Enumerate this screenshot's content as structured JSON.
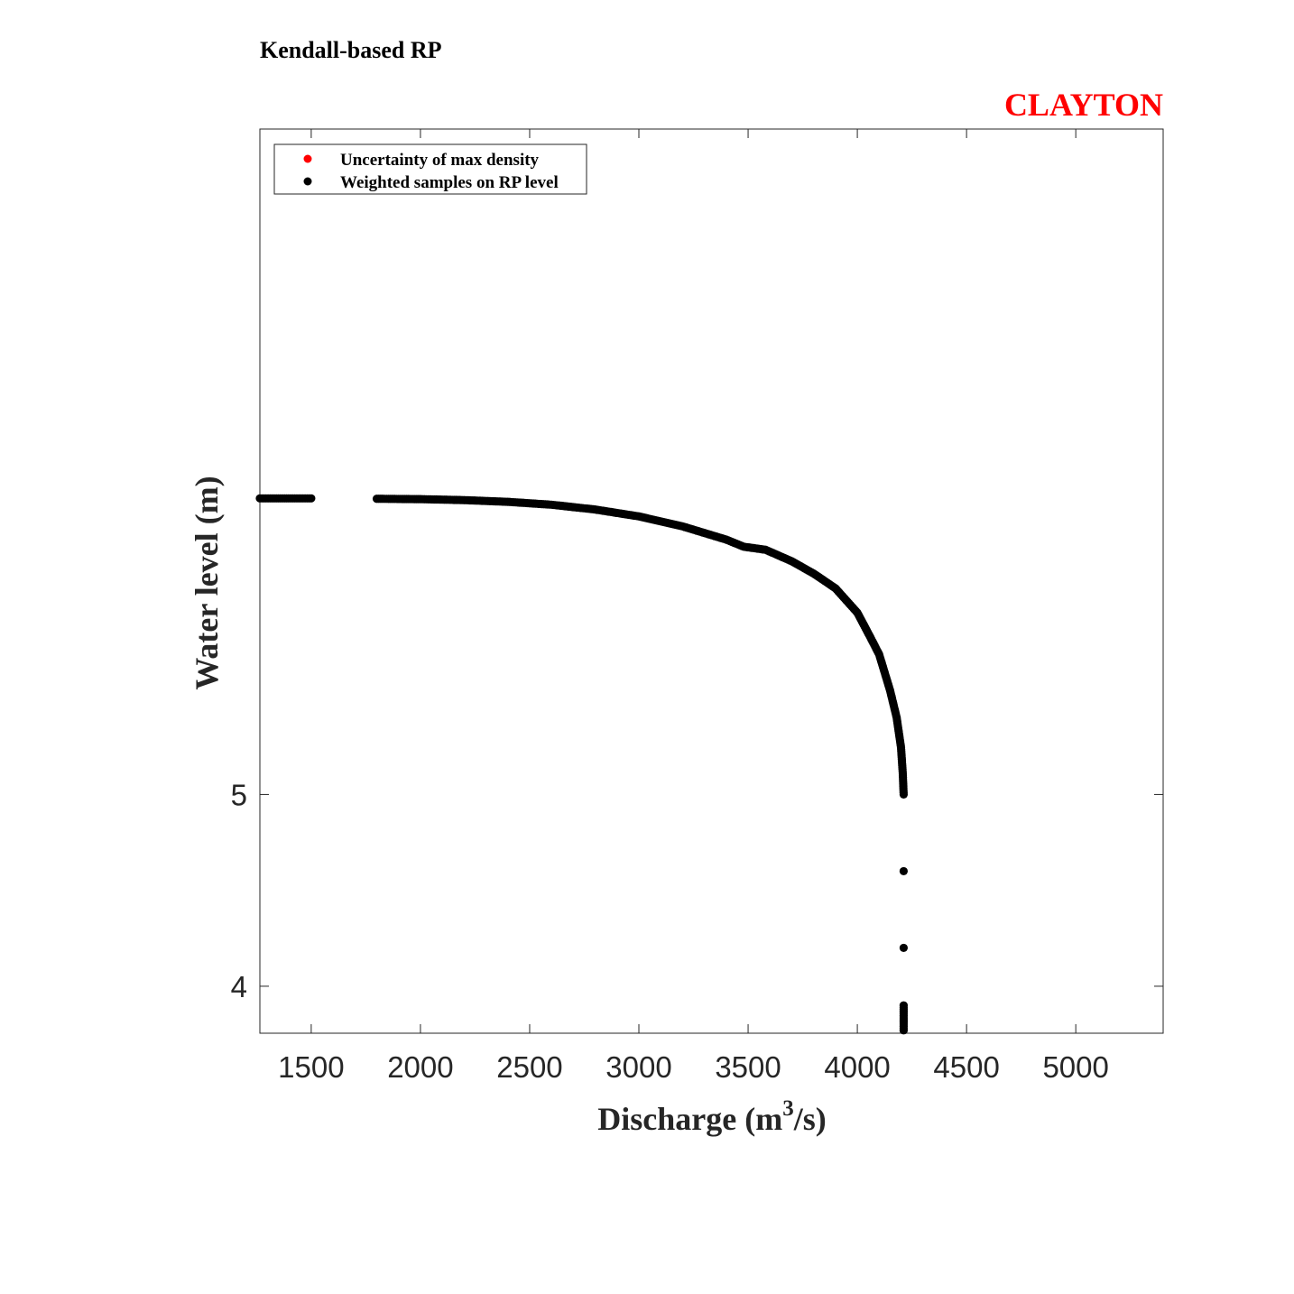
{
  "chart_data": {
    "type": "scatter",
    "title": "Kendall-based RP",
    "model_label": "CLAYTON",
    "xlabel_main": "Discharge (m",
    "xlabel_sup": "3",
    "xlabel_end": "/s)",
    "ylabel": "Water level (m)",
    "xlim": [
      1265,
      5400
    ],
    "ylim": [
      3.755,
      8.47
    ],
    "x_ticks": [
      1500,
      2000,
      2500,
      3000,
      3500,
      4000,
      4500,
      5000
    ],
    "x_tick_labels": [
      "1500",
      "2000",
      "2500",
      "3000",
      "3500",
      "4000",
      "4500",
      "5000"
    ],
    "y_ticks": [
      4,
      5
    ],
    "y_tick_labels": [
      "4",
      "5"
    ],
    "legend": {
      "position": "top-left",
      "entries": [
        {
          "label": "Uncertainty of max density",
          "color": "#ff0000"
        },
        {
          "label": "Weighted samples on RP level",
          "color": "#000000"
        }
      ]
    },
    "series": [
      {
        "name": "Weighted samples on RP level",
        "color": "#000000",
        "points": [
          [
            1265,
            6.544
          ],
          [
            1500,
            6.544
          ],
          [
            1800,
            6.542
          ],
          [
            2000,
            6.54
          ],
          [
            2200,
            6.535
          ],
          [
            2400,
            6.526
          ],
          [
            2600,
            6.511
          ],
          [
            2800,
            6.486
          ],
          [
            3000,
            6.45
          ],
          [
            3200,
            6.398
          ],
          [
            3400,
            6.329
          ],
          [
            3480,
            6.292
          ],
          [
            3580,
            6.276
          ],
          [
            3700,
            6.216
          ],
          [
            3800,
            6.152
          ],
          [
            3900,
            6.075
          ],
          [
            4000,
            5.948
          ],
          [
            4060,
            5.819
          ],
          [
            4100,
            5.73
          ],
          [
            4150,
            5.542
          ],
          [
            4180,
            5.401
          ],
          [
            4200,
            5.245
          ],
          [
            4208,
            5.11
          ],
          [
            4212,
            5.0
          ],
          [
            4212,
            4.6
          ],
          [
            4212,
            4.2
          ],
          [
            4212,
            3.9
          ],
          [
            4212,
            3.77
          ]
        ]
      },
      {
        "name": "Uncertainty of max density",
        "color": "#ff0000",
        "points": []
      }
    ]
  }
}
